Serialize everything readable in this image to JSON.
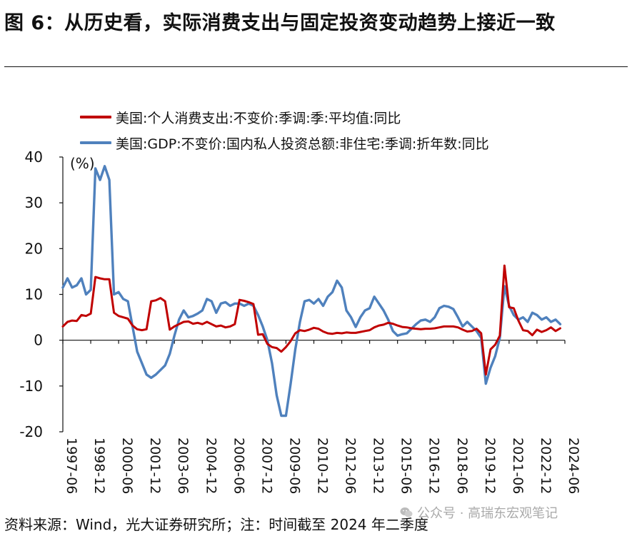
{
  "title": "图 6：从历史看，实际消费支出与固定投资变动趋势上接近一致",
  "source": "资料来源：Wind，光大证券研究所；注：时间截至 2024 年二季度",
  "watermark": {
    "icon": "wechat-icon",
    "text": "公众号 · 高瑞东宏观笔记"
  },
  "colors": {
    "red": "#c00000",
    "blue": "#4f81bd",
    "axis": "#111111"
  },
  "chart_data": {
    "type": "line",
    "unit_label": "(%)",
    "ylim": [
      -20,
      40
    ],
    "yticks": [
      40,
      30,
      20,
      10,
      0,
      -10,
      -20
    ],
    "xlim": [
      1997.5,
      2024.5
    ],
    "xticks": [
      "1997-06",
      "1998-12",
      "2000-06",
      "2001-12",
      "2003-06",
      "2004-12",
      "2006-06",
      "2007-12",
      "2009-06",
      "2010-12",
      "2012-06",
      "2013-12",
      "2015-06",
      "2016-12",
      "2018-06",
      "2019-12",
      "2021-06",
      "2022-12",
      "2024-06"
    ],
    "legend_position": "top",
    "grid": false,
    "series": [
      {
        "name": "美国:个人消费支出:不变价:季调:季:平均值:同比",
        "color": "#c00000",
        "points": [
          [
            1997.5,
            3.0
          ],
          [
            1997.75,
            4.0
          ],
          [
            1998.0,
            4.3
          ],
          [
            1998.25,
            4.2
          ],
          [
            1998.5,
            5.5
          ],
          [
            1998.75,
            5.3
          ],
          [
            1999.0,
            5.8
          ],
          [
            1999.25,
            13.8
          ],
          [
            1999.5,
            13.5
          ],
          [
            1999.75,
            13.3
          ],
          [
            2000.0,
            13.3
          ],
          [
            2000.25,
            6.0
          ],
          [
            2000.5,
            5.3
          ],
          [
            2000.75,
            5.0
          ],
          [
            2001.0,
            4.7
          ],
          [
            2001.25,
            3.2
          ],
          [
            2001.5,
            2.4
          ],
          [
            2001.75,
            2.2
          ],
          [
            2002.0,
            2.4
          ],
          [
            2002.25,
            8.5
          ],
          [
            2002.5,
            8.7
          ],
          [
            2002.75,
            9.2
          ],
          [
            2003.0,
            8.5
          ],
          [
            2003.25,
            2.3
          ],
          [
            2003.5,
            3.0
          ],
          [
            2003.75,
            3.5
          ],
          [
            2004.0,
            4.0
          ],
          [
            2004.25,
            4.1
          ],
          [
            2004.5,
            3.6
          ],
          [
            2004.75,
            3.8
          ],
          [
            2005.0,
            3.5
          ],
          [
            2005.25,
            4.0
          ],
          [
            2005.5,
            3.5
          ],
          [
            2005.75,
            3.0
          ],
          [
            2006.0,
            3.2
          ],
          [
            2006.25,
            2.8
          ],
          [
            2006.5,
            3.0
          ],
          [
            2006.75,
            3.5
          ],
          [
            2007.0,
            8.8
          ],
          [
            2007.25,
            8.6
          ],
          [
            2007.5,
            8.3
          ],
          [
            2007.75,
            7.9
          ],
          [
            2008.0,
            1.2
          ],
          [
            2008.25,
            1.3
          ],
          [
            2008.5,
            -0.8
          ],
          [
            2008.75,
            -1.5
          ],
          [
            2009.0,
            -1.7
          ],
          [
            2009.25,
            -2.5
          ],
          [
            2009.5,
            -1.5
          ],
          [
            2009.75,
            -0.2
          ],
          [
            2010.0,
            1.5
          ],
          [
            2010.25,
            2.2
          ],
          [
            2010.5,
            2.0
          ],
          [
            2010.75,
            2.3
          ],
          [
            2011.0,
            2.7
          ],
          [
            2011.25,
            2.5
          ],
          [
            2011.5,
            1.9
          ],
          [
            2011.75,
            1.5
          ],
          [
            2012.0,
            1.4
          ],
          [
            2012.25,
            1.6
          ],
          [
            2012.5,
            1.5
          ],
          [
            2012.75,
            1.7
          ],
          [
            2013.0,
            1.6
          ],
          [
            2013.25,
            1.6
          ],
          [
            2013.5,
            1.8
          ],
          [
            2013.75,
            2.0
          ],
          [
            2014.0,
            2.2
          ],
          [
            2014.25,
            2.8
          ],
          [
            2014.5,
            3.2
          ],
          [
            2014.75,
            3.4
          ],
          [
            2015.0,
            3.8
          ],
          [
            2015.25,
            3.6
          ],
          [
            2015.5,
            3.2
          ],
          [
            2015.75,
            2.9
          ],
          [
            2016.0,
            2.8
          ],
          [
            2016.25,
            2.6
          ],
          [
            2016.5,
            2.5
          ],
          [
            2016.75,
            2.4
          ],
          [
            2017.0,
            2.5
          ],
          [
            2017.25,
            2.5
          ],
          [
            2017.5,
            2.6
          ],
          [
            2017.75,
            2.8
          ],
          [
            2018.0,
            3.0
          ],
          [
            2018.25,
            3.0
          ],
          [
            2018.5,
            3.0
          ],
          [
            2018.75,
            2.8
          ],
          [
            2019.0,
            2.3
          ],
          [
            2019.25,
            1.9
          ],
          [
            2019.5,
            2.0
          ],
          [
            2019.75,
            2.5
          ],
          [
            2020.0,
            1.5
          ],
          [
            2020.25,
            -7.5
          ],
          [
            2020.5,
            -2.0
          ],
          [
            2020.75,
            -1.0
          ],
          [
            2021.0,
            1.0
          ],
          [
            2021.25,
            16.3
          ],
          [
            2021.5,
            7.2
          ],
          [
            2021.75,
            7.0
          ],
          [
            2022.0,
            4.3
          ],
          [
            2022.25,
            2.2
          ],
          [
            2022.5,
            2.0
          ],
          [
            2022.75,
            1.1
          ],
          [
            2023.0,
            2.3
          ],
          [
            2023.25,
            1.8
          ],
          [
            2023.5,
            2.2
          ],
          [
            2023.75,
            2.8
          ],
          [
            2024.0,
            2.0
          ],
          [
            2024.25,
            2.6
          ]
        ]
      },
      {
        "name": "美国:GDP:不变价:国内私人投资总额:非住宅:季调:折年数:同比",
        "color": "#4f81bd",
        "points": [
          [
            1997.5,
            11.5
          ],
          [
            1997.75,
            13.5
          ],
          [
            1998.0,
            11.5
          ],
          [
            1998.25,
            12.0
          ],
          [
            1998.5,
            13.5
          ],
          [
            1998.75,
            10.0
          ],
          [
            1999.0,
            11.0
          ],
          [
            1999.25,
            37.5
          ],
          [
            1999.5,
            35.0
          ],
          [
            1999.75,
            38.0
          ],
          [
            2000.0,
            35.0
          ],
          [
            2000.25,
            10.0
          ],
          [
            2000.5,
            10.5
          ],
          [
            2000.75,
            9.0
          ],
          [
            2001.0,
            8.5
          ],
          [
            2001.25,
            3.0
          ],
          [
            2001.5,
            -2.5
          ],
          [
            2001.75,
            -5.0
          ],
          [
            2002.0,
            -7.5
          ],
          [
            2002.25,
            -8.2
          ],
          [
            2002.5,
            -7.5
          ],
          [
            2002.75,
            -6.5
          ],
          [
            2003.0,
            -5.5
          ],
          [
            2003.25,
            -3.0
          ],
          [
            2003.5,
            1.0
          ],
          [
            2003.75,
            4.5
          ],
          [
            2004.0,
            6.5
          ],
          [
            2004.25,
            5.0
          ],
          [
            2004.5,
            5.3
          ],
          [
            2004.75,
            5.8
          ],
          [
            2005.0,
            6.5
          ],
          [
            2005.25,
            9.0
          ],
          [
            2005.5,
            8.5
          ],
          [
            2005.75,
            6.0
          ],
          [
            2006.0,
            8.0
          ],
          [
            2006.25,
            8.3
          ],
          [
            2006.5,
            7.5
          ],
          [
            2006.75,
            8.0
          ],
          [
            2007.0,
            8.0
          ],
          [
            2007.25,
            7.5
          ],
          [
            2007.5,
            8.0
          ],
          [
            2007.75,
            7.5
          ],
          [
            2008.0,
            5.5
          ],
          [
            2008.25,
            3.0
          ],
          [
            2008.5,
            0.0
          ],
          [
            2008.75,
            -5.0
          ],
          [
            2009.0,
            -12.0
          ],
          [
            2009.25,
            -16.5
          ],
          [
            2009.5,
            -16.5
          ],
          [
            2009.75,
            -9.5
          ],
          [
            2010.0,
            -2.0
          ],
          [
            2010.25,
            4.0
          ],
          [
            2010.5,
            8.5
          ],
          [
            2010.75,
            8.8
          ],
          [
            2011.0,
            8.0
          ],
          [
            2011.25,
            9.0
          ],
          [
            2011.5,
            7.5
          ],
          [
            2011.75,
            9.5
          ],
          [
            2012.0,
            10.5
          ],
          [
            2012.25,
            13.0
          ],
          [
            2012.5,
            11.5
          ],
          [
            2012.75,
            6.5
          ],
          [
            2013.0,
            5.0
          ],
          [
            2013.25,
            2.9
          ],
          [
            2013.5,
            5.0
          ],
          [
            2013.75,
            6.5
          ],
          [
            2014.0,
            7.0
          ],
          [
            2014.25,
            9.5
          ],
          [
            2014.5,
            8.0
          ],
          [
            2014.75,
            6.5
          ],
          [
            2015.0,
            4.5
          ],
          [
            2015.25,
            2.0
          ],
          [
            2015.5,
            1.0
          ],
          [
            2015.75,
            1.3
          ],
          [
            2016.0,
            1.5
          ],
          [
            2016.25,
            2.5
          ],
          [
            2016.5,
            3.5
          ],
          [
            2016.75,
            4.3
          ],
          [
            2017.0,
            4.5
          ],
          [
            2017.25,
            4.0
          ],
          [
            2017.5,
            5.0
          ],
          [
            2017.75,
            7.0
          ],
          [
            2018.0,
            7.5
          ],
          [
            2018.25,
            7.3
          ],
          [
            2018.5,
            6.8
          ],
          [
            2018.75,
            5.0
          ],
          [
            2019.0,
            3.0
          ],
          [
            2019.25,
            4.0
          ],
          [
            2019.5,
            3.0
          ],
          [
            2019.75,
            2.0
          ],
          [
            2020.0,
            0.5
          ],
          [
            2020.25,
            -9.5
          ],
          [
            2020.5,
            -6.0
          ],
          [
            2020.75,
            -3.5
          ],
          [
            2021.0,
            0.5
          ],
          [
            2021.25,
            11.8
          ],
          [
            2021.5,
            7.5
          ],
          [
            2021.75,
            5.5
          ],
          [
            2022.0,
            4.5
          ],
          [
            2022.25,
            5.0
          ],
          [
            2022.5,
            4.0
          ],
          [
            2022.75,
            6.0
          ],
          [
            2023.0,
            5.5
          ],
          [
            2023.25,
            4.5
          ],
          [
            2023.5,
            5.0
          ],
          [
            2023.75,
            4.0
          ],
          [
            2024.0,
            4.5
          ],
          [
            2024.25,
            3.5
          ]
        ]
      }
    ]
  }
}
